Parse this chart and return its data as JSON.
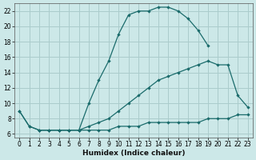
{
  "xlabel": "Humidex (Indice chaleur)",
  "background_color": "#cce8e8",
  "grid_color": "#aacccc",
  "line_color": "#1a6b6b",
  "xlim": [
    -0.5,
    23.5
  ],
  "ylim": [
    5.5,
    23.0
  ],
  "yticks": [
    6,
    8,
    10,
    12,
    14,
    16,
    18,
    20,
    22
  ],
  "xticks": [
    0,
    1,
    2,
    3,
    4,
    5,
    6,
    7,
    8,
    9,
    10,
    11,
    12,
    13,
    14,
    15,
    16,
    17,
    18,
    19,
    20,
    21,
    22,
    23
  ],
  "line1": {
    "x": [
      0,
      1,
      2,
      3,
      4,
      5,
      6,
      7,
      8,
      9,
      10,
      11,
      12,
      13,
      14,
      15,
      16,
      17,
      18,
      19
    ],
    "y": [
      9,
      7,
      6.5,
      6.5,
      6.5,
      6.5,
      6.5,
      10,
      13,
      15.5,
      19,
      21.5,
      22,
      22,
      22.5,
      22.5,
      22,
      21,
      19.5,
      17.5
    ]
  },
  "line2": {
    "x": [
      0,
      1,
      2,
      3,
      4,
      5,
      6,
      7,
      8,
      9,
      10,
      11,
      12,
      13,
      14,
      15,
      16,
      17,
      18,
      19,
      20,
      21,
      22,
      23
    ],
    "y": [
      9,
      7,
      6.5,
      6.5,
      6.5,
      6.5,
      6.5,
      7,
      7.5,
      8,
      9,
      10,
      11,
      12,
      13,
      13.5,
      14,
      14.5,
      15,
      15.5,
      15,
      15,
      11,
      9.5
    ]
  },
  "line3": {
    "x": [
      2,
      3,
      4,
      5,
      6,
      7,
      8,
      9,
      10,
      11,
      12,
      13,
      14,
      15,
      16,
      17,
      18,
      19,
      20,
      21,
      22,
      23
    ],
    "y": [
      6.5,
      6.5,
      6.5,
      6.5,
      6.5,
      6.5,
      6.5,
      6.5,
      7,
      7,
      7,
      7.5,
      7.5,
      7.5,
      7.5,
      7.5,
      7.5,
      8,
      8,
      8,
      8.5,
      8.5
    ]
  }
}
